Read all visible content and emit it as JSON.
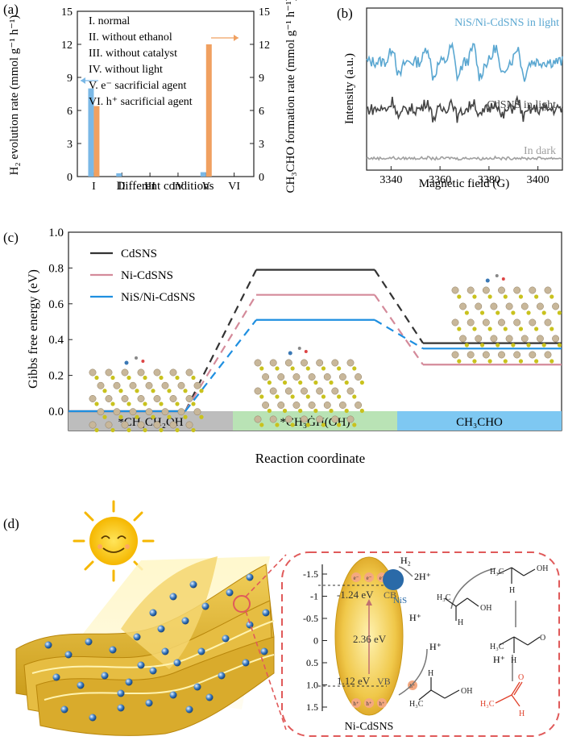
{
  "panel_labels": {
    "a": "(a)",
    "b": "(b)",
    "c": "(c)",
    "d": "(d)"
  },
  "chart_data": [
    {
      "type": "bar",
      "panel": "a",
      "categories": [
        "I",
        "II",
        "III",
        "IV",
        "V",
        "VI"
      ],
      "series": [
        {
          "name": "H2 evolution rate",
          "color": "#7ab8e6",
          "values": [
            8.0,
            0.3,
            0,
            0,
            0.4,
            0
          ]
        },
        {
          "name": "CH3CHO formation rate",
          "color": "#f0a060",
          "values": [
            6.4,
            0,
            0,
            0,
            12.0,
            0
          ]
        }
      ],
      "legend": [
        "I. normal",
        "II. without ethanol",
        "III. without catalyst",
        "IV. without light",
        "V. e⁻ sacrificial agent",
        "VI. h⁺ sacrificial agent"
      ],
      "xlabel": "Different conditions",
      "ylabel_left": "H₂ evolution rate (mmol g⁻¹ h⁻¹)",
      "ylabel_right": "CH₃CHO formation rate (mmol g⁻¹ h⁻¹)",
      "ylim_left": [
        0,
        15
      ],
      "ylim_right": [
        0,
        15
      ],
      "yticks": [
        "0",
        "3",
        "6",
        "9",
        "12",
        "15"
      ]
    },
    {
      "type": "line",
      "panel": "b",
      "xlabel": "Magnetic field (G)",
      "ylabel": "Intensity (a.u.)",
      "xlim": [
        3330,
        3410
      ],
      "xticks": [
        "3340",
        "3360",
        "3380",
        "3400"
      ],
      "series": [
        {
          "name": "NiS/Ni-CdSNS in light",
          "color": "#5aa7d1",
          "offset": 3.2,
          "amplitude": 1.0
        },
        {
          "name": "CdSNS in light",
          "color": "#444444",
          "offset": 1.8,
          "amplitude": 0.55
        },
        {
          "name": "In dark",
          "color": "#a0a0a0",
          "offset": 0.35,
          "amplitude": 0.03
        }
      ],
      "peak_centers": [
        3342,
        3356,
        3366,
        3375,
        3384,
        3393
      ]
    },
    {
      "type": "line",
      "panel": "c",
      "ylabel": "Gibbs free energy (eV)",
      "xlabel": "Reaction coordinate",
      "ylim": [
        0,
        1.0
      ],
      "yticks": [
        "0.0",
        "0.2",
        "0.4",
        "0.6",
        "0.8",
        "1.0"
      ],
      "stages": [
        "*CH₃CH₂OH",
        "*CH₃ĠH(OH)",
        "CH₃CHO"
      ],
      "stage_colors": [
        "#bdbdbd",
        "#b9e3b5",
        "#7ec8f2"
      ],
      "series": [
        {
          "name": "CdSNS",
          "color": "#333333",
          "values": [
            0.0,
            0.79,
            0.38
          ]
        },
        {
          "name": "Ni-CdSNS",
          "color": "#d48a9a",
          "values": [
            0.0,
            0.65,
            0.26
          ]
        },
        {
          "name": "NiS/Ni-CdSNS",
          "color": "#1f8fe0",
          "values": [
            0.0,
            0.51,
            0.35
          ]
        }
      ]
    }
  ],
  "panel_d": {
    "axis_ticks": [
      "-1.5",
      "-1",
      "-0.5",
      "0",
      "0.5",
      "1.0",
      "1.5"
    ],
    "cb_energy": "-1.24 eV",
    "vb_energy": "1.12 eV",
    "band_gap": "2.36 eV",
    "cb_label": "CB",
    "vb_label": "VB",
    "catalyst_label": "Ni-CdSNS",
    "cocatalyst_label": "NiS",
    "electron": "e⁻",
    "hole": "h⁺",
    "h2": "H₂",
    "two_h_plus": "2H⁺",
    "h_plus": "H⁺",
    "product_label": "H₃C—C(=O)—H"
  }
}
